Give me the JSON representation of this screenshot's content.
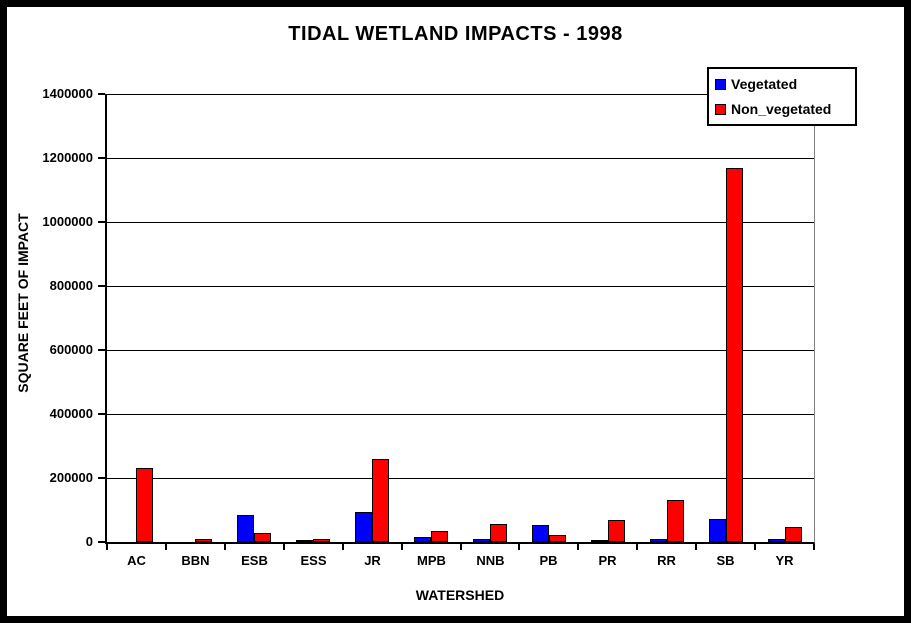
{
  "chart_data": {
    "type": "bar",
    "title": "TIDAL WETLAND IMPACTS - 1998",
    "xlabel": "WATERSHED",
    "ylabel": "SQUARE FEET OF IMPACT",
    "categories": [
      "AC",
      "BBN",
      "ESB",
      "ESS",
      "JR",
      "MPB",
      "NNB",
      "PB",
      "PR",
      "RR",
      "SB",
      "YR"
    ],
    "series": [
      {
        "name": "Vegetated",
        "color": "#0000ff",
        "values": [
          0,
          0,
          83000,
          7000,
          94000,
          15000,
          9000,
          53000,
          7000,
          8000,
          71000,
          10000
        ]
      },
      {
        "name": "Non_vegetated",
        "color": "#ff0000",
        "values": [
          230000,
          9000,
          28000,
          10000,
          258000,
          34000,
          56000,
          22000,
          70000,
          130000,
          1170000,
          47000
        ]
      }
    ],
    "ylim": [
      0,
      1400000
    ],
    "yticks": [
      0,
      200000,
      400000,
      600000,
      800000,
      1000000,
      1200000,
      1400000
    ],
    "grid": true,
    "legend_position": "top-right",
    "colors": {
      "axis": "#000000",
      "gridline": "#000000",
      "plot_border_right": "#808080",
      "background": "#ffffff",
      "frame_border": "#000000"
    }
  }
}
